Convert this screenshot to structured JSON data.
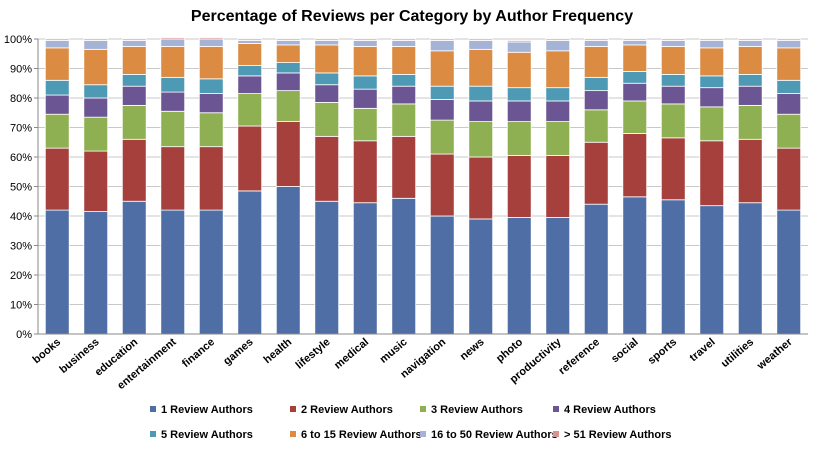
{
  "chart_data": {
    "type": "bar",
    "stacked": true,
    "title": "Percentage of Reviews per Category by Author Frequency",
    "xlabel": "",
    "ylabel": "",
    "ylim": [
      0,
      100
    ],
    "yticks": [
      "0%",
      "10%",
      "20%",
      "30%",
      "40%",
      "50%",
      "60%",
      "70%",
      "80%",
      "90%",
      "100%"
    ],
    "grid": true,
    "legend_position": "bottom",
    "categories": [
      "books",
      "business",
      "education",
      "entertainment",
      "finance",
      "games",
      "health",
      "lifestyle",
      "medical",
      "music",
      "navigation",
      "news",
      "photo",
      "productivity",
      "reference",
      "social",
      "sports",
      "travel",
      "utilities",
      "weather"
    ],
    "series": [
      {
        "name": "1 Review Authors",
        "color": "#4F6EA6",
        "values": [
          42,
          41.5,
          45,
          42,
          42,
          48.5,
          50,
          45,
          44.5,
          46,
          40,
          39,
          39.5,
          39.5,
          44,
          46.5,
          45.5,
          43.5,
          44.5,
          42
        ]
      },
      {
        "name": "2 Review Authors",
        "color": "#A6403D",
        "values": [
          21,
          20.5,
          21,
          21.5,
          21.5,
          22,
          22,
          22,
          21,
          21,
          21,
          21,
          21,
          21,
          21,
          21.5,
          21,
          22,
          21.5,
          21
        ]
      },
      {
        "name": "3 Review Authors",
        "color": "#8FB052",
        "values": [
          11.5,
          11.5,
          11.5,
          12,
          11.5,
          11,
          10.5,
          11.5,
          11,
          11,
          11.5,
          12,
          11.5,
          11.5,
          11,
          11,
          11.5,
          11.5,
          11.5,
          11.5
        ]
      },
      {
        "name": "4 Review Authors",
        "color": "#6B5592",
        "values": [
          6.5,
          6.5,
          6.5,
          6.5,
          6.5,
          6,
          6,
          6,
          6.5,
          6,
          7,
          7,
          7,
          7,
          6.5,
          6,
          6,
          6.5,
          6.5,
          7
        ]
      },
      {
        "name": "5 Review Authors",
        "color": "#4E9AB4",
        "values": [
          5,
          4.5,
          4,
          5,
          5,
          3.5,
          3.5,
          4,
          4.5,
          4,
          4.5,
          5,
          4.5,
          4.5,
          4.5,
          4,
          4,
          4,
          4,
          4.5
        ]
      },
      {
        "name": "6 to 15 Review Authors",
        "color": "#DB8B42",
        "values": [
          11,
          12,
          9.5,
          10.5,
          11,
          7.5,
          6,
          9.5,
          10,
          9.5,
          12,
          12.5,
          12,
          12.5,
          10.5,
          9,
          9.5,
          9.5,
          9.5,
          11
        ]
      },
      {
        "name": "16 to 50 Review Authors",
        "color": "#A4B3D6",
        "values": [
          2.5,
          3,
          2,
          2.5,
          2.5,
          1,
          1.5,
          1.5,
          2,
          2,
          3.5,
          3,
          3.5,
          3.5,
          2,
          1.5,
          2,
          2.5,
          2,
          2.5
        ]
      },
      {
        "name": "> 51 Review Authors",
        "color": "#D89292",
        "values": [
          0.5,
          0.5,
          0.5,
          0.5,
          0.5,
          0.5,
          0.5,
          0.5,
          0.5,
          0.5,
          0.5,
          0.5,
          0.5,
          0.5,
          0.5,
          0.5,
          0.5,
          0.5,
          0.5,
          0.5
        ]
      }
    ]
  }
}
